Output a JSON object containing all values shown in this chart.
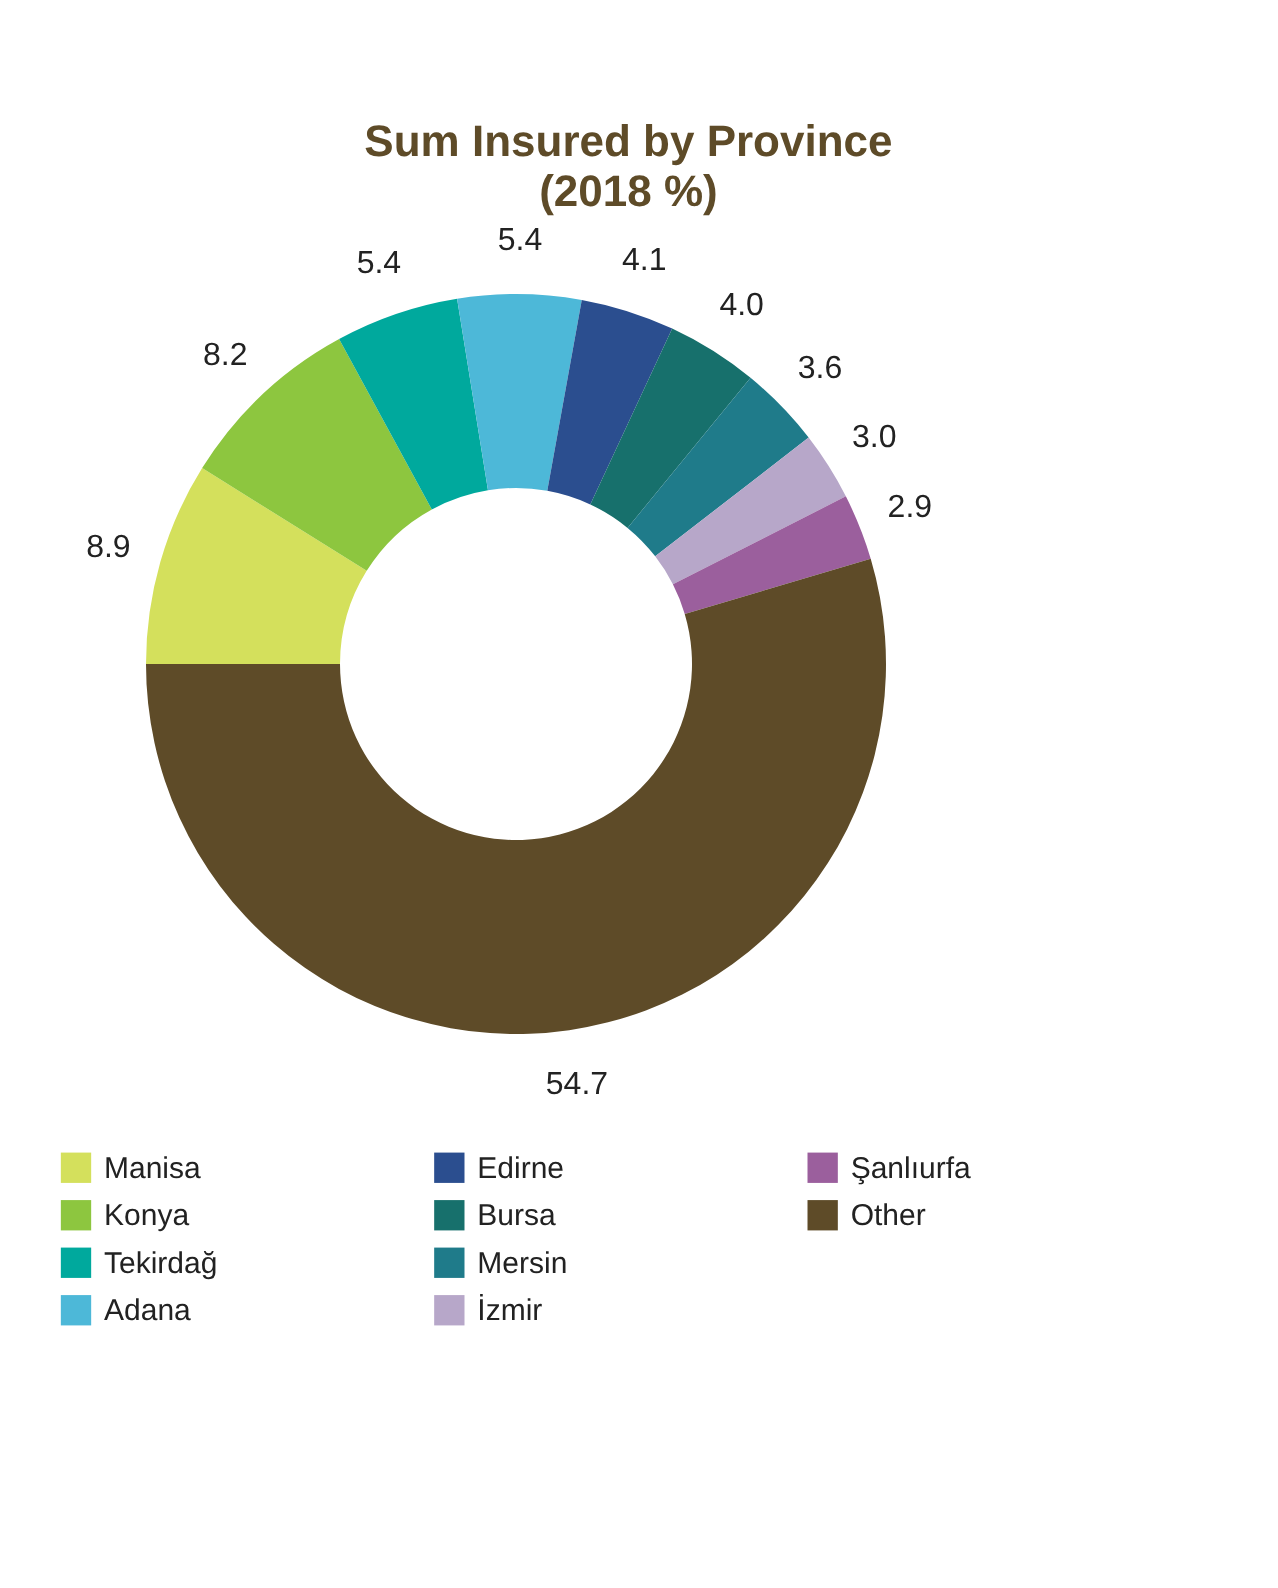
{
  "chart_data": {
    "type": "donut",
    "title": "Sum Insured by Province",
    "subtitle": "(2018 %)",
    "categories": [
      "Manisa",
      "Konya",
      "Tekirdağ",
      "Adana",
      "Edirne",
      "Bursa",
      "Mersin",
      "İzmir",
      "Şanlıurfa",
      "Other"
    ],
    "values": [
      8.9,
      8.2,
      5.4,
      5.4,
      4.1,
      4.0,
      3.6,
      3.0,
      2.9,
      54.7
    ],
    "colors": [
      "#d4e05c",
      "#8dc63f",
      "#00a99d",
      "#4db8d8",
      "#2b4e8f",
      "#17706c",
      "#1f7b8a",
      "#b7a7c9",
      "#9b5f9d",
      "#5e4b28"
    ],
    "value_labels": [
      "8.9",
      "8.2",
      "5.4",
      "5.4",
      "4.1",
      "4.0",
      "3.6",
      "3.0",
      "2.9",
      "54.7"
    ],
    "legend": "bottom"
  }
}
